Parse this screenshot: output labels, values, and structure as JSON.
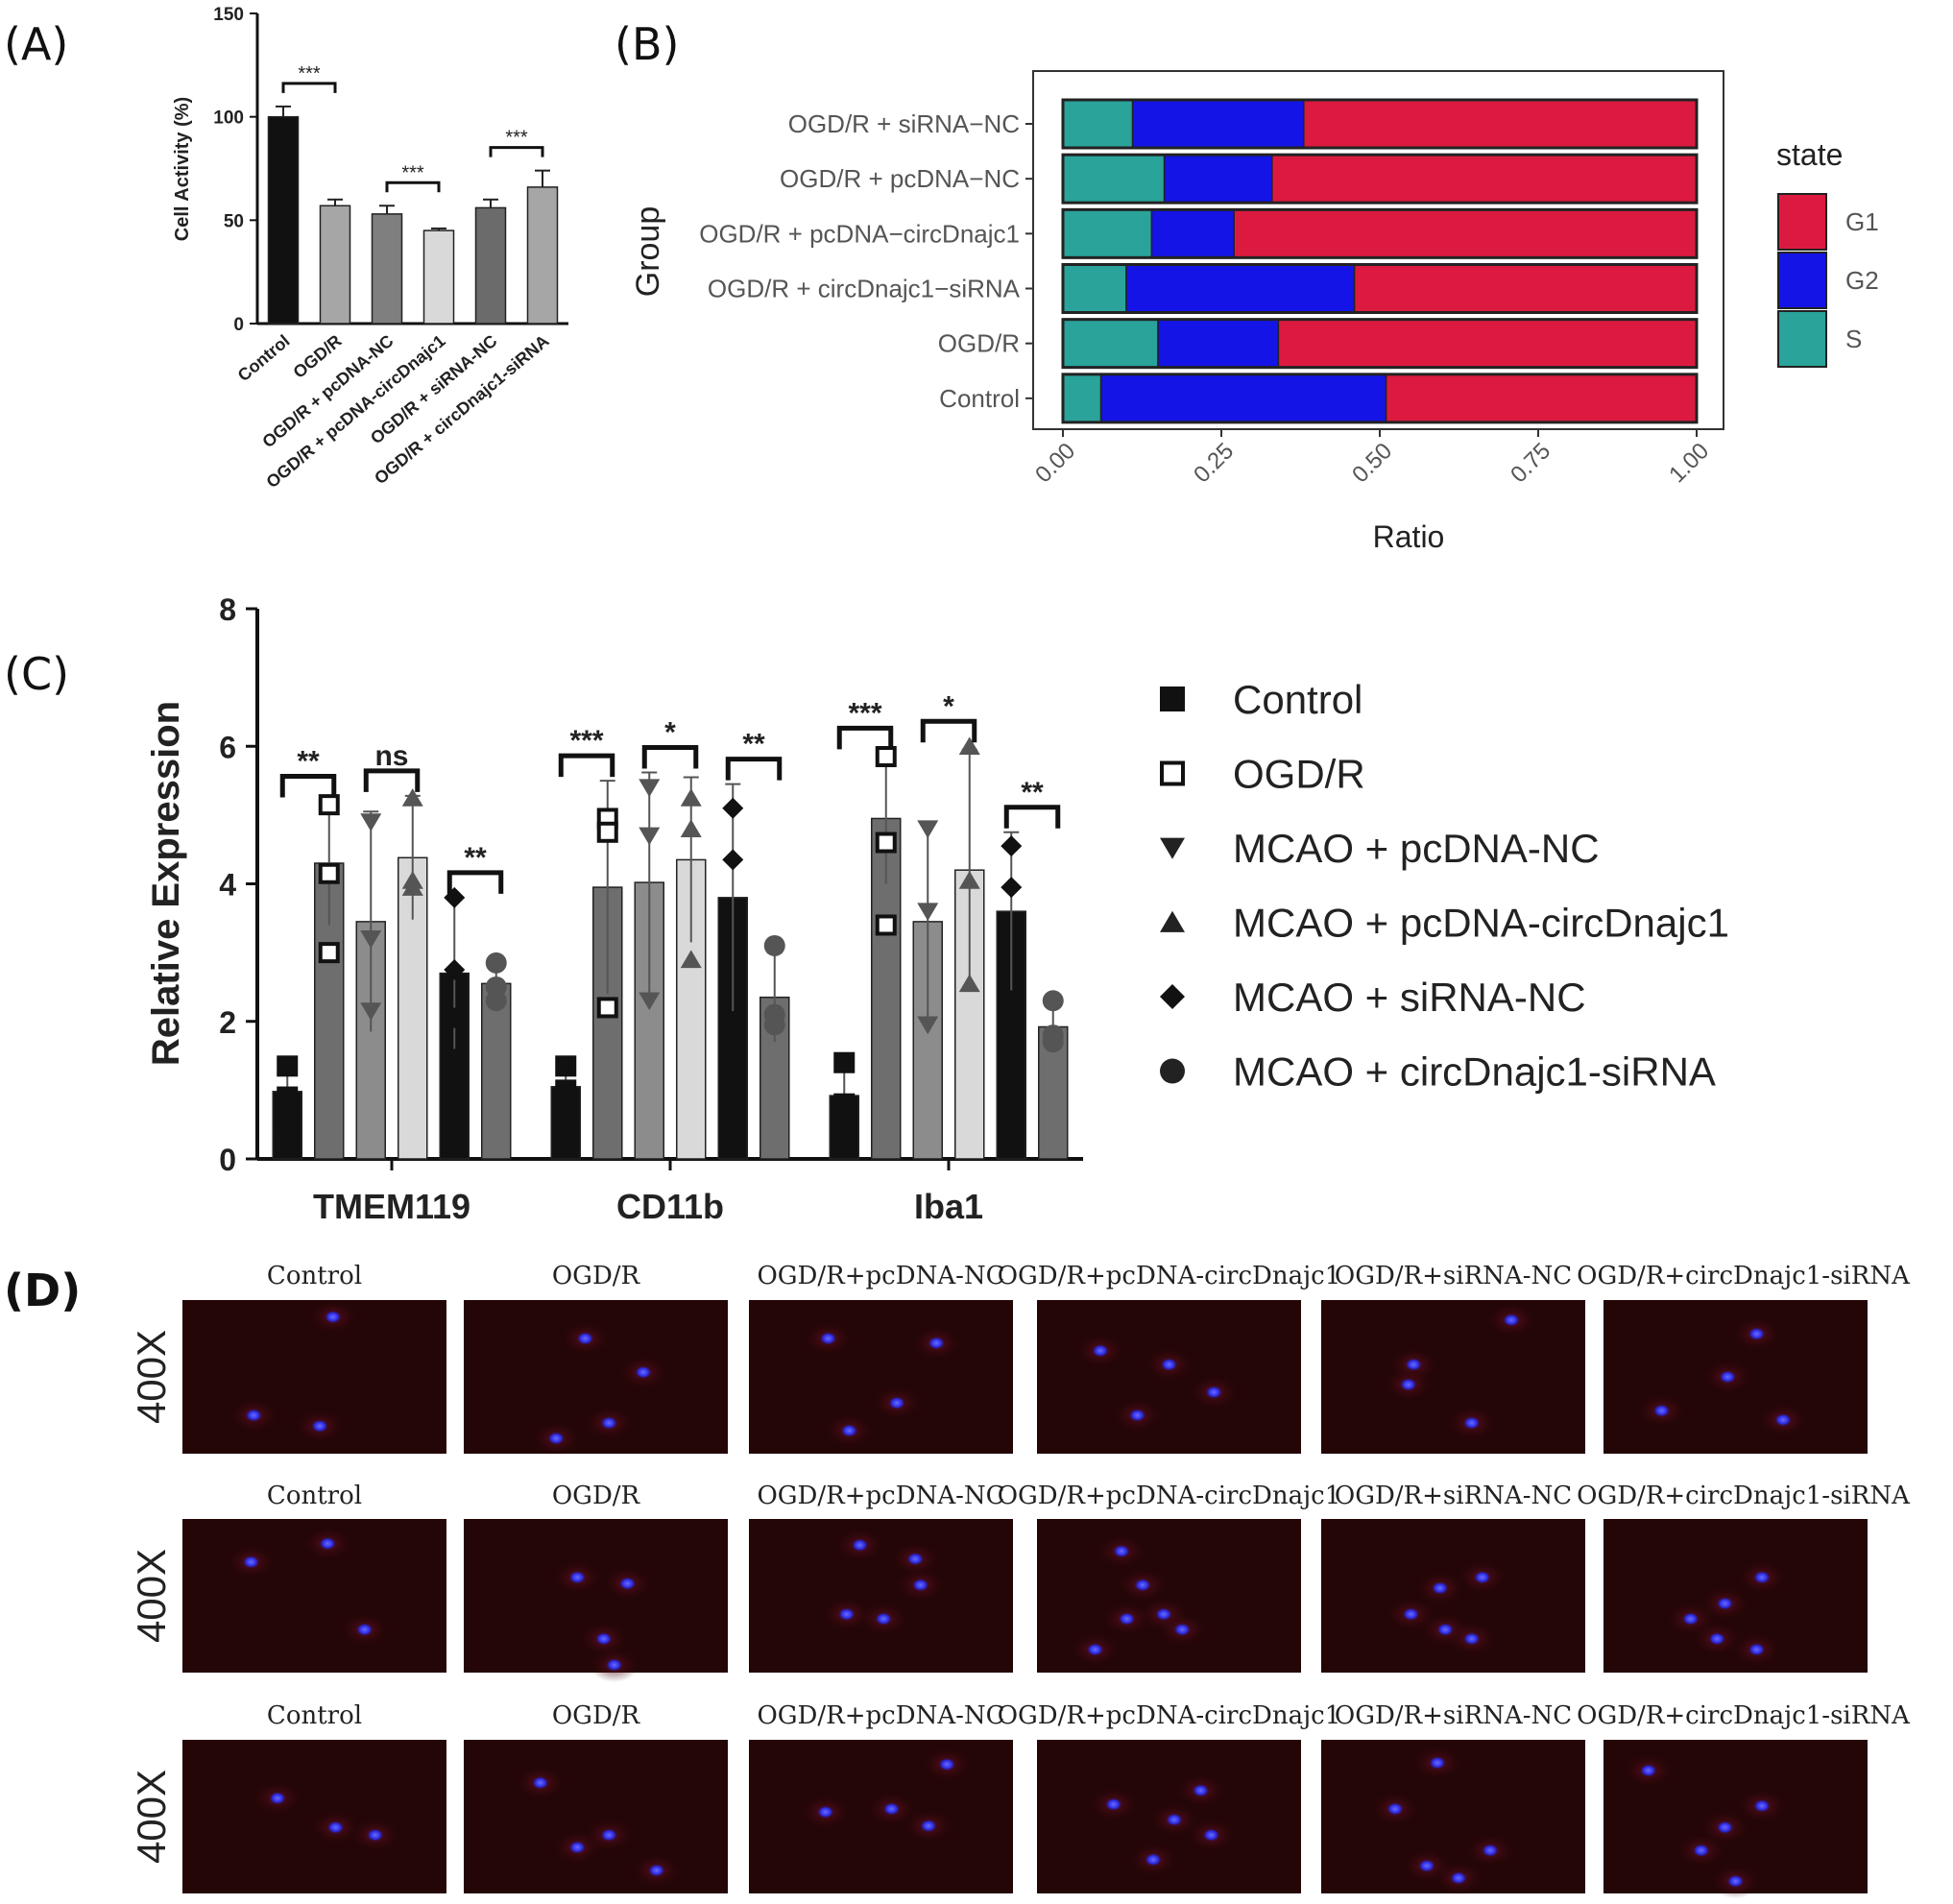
{
  "panel_labels": {
    "a": "(A)",
    "b": "(B)",
    "c": "(C)",
    "d": "(D)"
  },
  "chart_data": [
    {
      "panel": "(A)",
      "type": "bar",
      "ylabel": "Cell Activity (%)",
      "ylim": [
        0,
        150
      ],
      "yticks": [
        0,
        50,
        100,
        150
      ],
      "categories": [
        "Control",
        "OGD/R",
        "OGD/R + pcDNA-NC",
        "OGD/R + pcDNA-circDnajc1",
        "OGD/R + siRNA-NC",
        "OGD/R + circDnajc1-siRNA"
      ],
      "values": [
        100,
        57,
        53,
        45,
        56,
        66
      ],
      "errors": [
        5,
        3,
        4,
        1,
        4,
        8
      ],
      "colors": [
        "#111111",
        "#a6a6a6",
        "#7f7f7f",
        "#d9d9d9",
        "#6b6b6b",
        "#a6a6a6"
      ],
      "significance": [
        {
          "from": 0,
          "to": 1,
          "label": "***"
        },
        {
          "from": 2,
          "to": 3,
          "label": "***"
        },
        {
          "from": 4,
          "to": 5,
          "label": "***"
        }
      ]
    },
    {
      "panel": "(B)",
      "type": "bar",
      "orientation": "horizontal-stacked",
      "xlabel": "Ratio",
      "ylabel": "Group",
      "xlim": [
        0,
        1
      ],
      "xticks": [
        "0.00",
        "0.25",
        "0.50",
        "0.75",
        "1.00"
      ],
      "categories": [
        "OGD/R + siRNA−NC",
        "OGD/R + pcDNA−NC",
        "OGD/R + pcDNA−circDnajc1",
        "OGD/R + circDnajc1−siRNA",
        "OGD/R",
        "Control"
      ],
      "series": [
        {
          "name": "S",
          "color": "#2aa39a",
          "values": [
            0.11,
            0.16,
            0.14,
            0.1,
            0.15,
            0.06
          ]
        },
        {
          "name": "G2",
          "color": "#1414e6",
          "values": [
            0.27,
            0.17,
            0.13,
            0.36,
            0.19,
            0.45
          ]
        },
        {
          "name": "G1",
          "color": "#dc1a40",
          "values": [
            0.62,
            0.67,
            0.73,
            0.54,
            0.66,
            0.49
          ]
        }
      ],
      "legend_title": "state",
      "legend_order": [
        "G1",
        "G2",
        "S"
      ],
      "legend_position": "right"
    },
    {
      "panel": "(C)",
      "type": "bar",
      "ylabel": "Relative Expression",
      "ylim": [
        0,
        8
      ],
      "yticks": [
        0,
        2,
        4,
        6,
        8
      ],
      "categories": [
        "TMEM119",
        "CD11b",
        "Iba1"
      ],
      "series": [
        {
          "name": "Control",
          "marker": "square-filled",
          "color": "#111111",
          "values": [
            0.98,
            1.05,
            0.92
          ],
          "errors": [
            0.4,
            0.35,
            0.45
          ],
          "points": [
            [
              1.35,
              0.9,
              0.6
            ],
            [
              1.35,
              1.0,
              0.75
            ],
            [
              1.4,
              0.8,
              0.6
            ]
          ]
        },
        {
          "name": "OGD/R",
          "marker": "square-open",
          "color": "#6e6e6e",
          "values": [
            4.3,
            3.95,
            4.95
          ],
          "errors": [
            0.9,
            1.55,
            0.95
          ],
          "points": [
            [
              5.15,
              4.15,
              3.0
            ],
            [
              4.95,
              4.75,
              2.2
            ],
            [
              5.85,
              4.6,
              3.4
            ]
          ]
        },
        {
          "name": "MCAO + pcDNA-NC",
          "marker": "triangle-down",
          "color": "#8c8c8c",
          "values": [
            3.45,
            4.02,
            3.45
          ],
          "errors": [
            1.6,
            1.6,
            1.45
          ],
          "points": [
            [
              4.9,
              3.2,
              2.15
            ],
            [
              5.4,
              4.7,
              2.3
            ],
            [
              4.8,
              3.6,
              1.95
            ]
          ]
        },
        {
          "name": "MCAO + pcDNA-circDnajc1",
          "marker": "triangle-up",
          "color": "#d9d9d9",
          "values": [
            4.38,
            4.35,
            4.2
          ],
          "errors": [
            0.9,
            1.2,
            1.75
          ],
          "points": [
            [
              5.25,
              4.05,
              3.95
            ],
            [
              5.25,
              4.8,
              2.9
            ],
            [
              6.0,
              4.05,
              2.55
            ]
          ]
        },
        {
          "name": "MCAO + siRNA-NC",
          "marker": "diamond",
          "color": "#111111",
          "values": [
            2.7,
            3.8,
            3.6
          ],
          "errors": [
            1.1,
            1.65,
            1.15
          ],
          "points": [
            [
              3.8,
              2.75,
              2.05
            ],
            [
              5.1,
              4.35,
              1.95
            ],
            [
              4.55,
              3.95,
              2.3
            ]
          ]
        },
        {
          "name": "MCAO + circDnajc1-siRNA",
          "marker": "circle",
          "color": "#6e6e6e",
          "values": [
            2.55,
            2.35,
            1.92
          ],
          "errors": [
            0.25,
            0.65,
            0.3
          ],
          "points": [
            [
              2.85,
              2.5,
              2.3
            ],
            [
              3.1,
              2.1,
              1.95
            ],
            [
              2.3,
              1.8,
              1.7
            ]
          ]
        }
      ],
      "significance": [
        {
          "category": 0,
          "from": 0,
          "to": 1,
          "label": "**"
        },
        {
          "category": 0,
          "from": 2,
          "to": 3,
          "label": "ns"
        },
        {
          "category": 0,
          "from": 4,
          "to": 5,
          "label": "**"
        },
        {
          "category": 1,
          "from": 0,
          "to": 1,
          "label": "***"
        },
        {
          "category": 1,
          "from": 2,
          "to": 3,
          "label": "*"
        },
        {
          "category": 1,
          "from": 4,
          "to": 5,
          "label": "**"
        },
        {
          "category": 2,
          "from": 0,
          "to": 1,
          "label": "***"
        },
        {
          "category": 2,
          "from": 2,
          "to": 3,
          "label": "*"
        },
        {
          "category": 2,
          "from": 4,
          "to": 5,
          "label": "**"
        }
      ],
      "legend_position": "right"
    }
  ],
  "panel_d": {
    "magnification": "400X",
    "rows": [
      {
        "labels": [
          "Control",
          "OGD/R",
          "OGD/R+pcDNA-NC",
          "OGD/R+pcDNA-circDnajc1",
          "OGD/R+siRNA-NC",
          "OGD/R+circDnajc1-siRNA"
        ],
        "cells": [
          [
            [
              0.57,
              0.11
            ],
            [
              0.27,
              0.75
            ],
            [
              0.52,
              0.82
            ]
          ],
          [
            [
              0.46,
              0.25
            ],
            [
              0.68,
              0.47
            ],
            [
              0.55,
              0.8
            ],
            [
              0.35,
              0.9
            ]
          ],
          [
            [
              0.3,
              0.25
            ],
            [
              0.71,
              0.28
            ],
            [
              0.56,
              0.67
            ],
            [
              0.38,
              0.85
            ]
          ],
          [
            [
              0.24,
              0.33
            ],
            [
              0.5,
              0.42
            ],
            [
              0.67,
              0.6
            ],
            [
              0.38,
              0.75
            ]
          ],
          [
            [
              0.35,
              0.42
            ],
            [
              0.33,
              0.55
            ],
            [
              0.57,
              0.8
            ],
            [
              0.72,
              0.13
            ]
          ],
          [
            [
              0.58,
              0.22
            ],
            [
              0.47,
              0.5
            ],
            [
              0.22,
              0.72
            ],
            [
              0.68,
              0.78
            ]
          ]
        ]
      },
      {
        "labels": [
          "Control",
          "OGD/R",
          "OGD/R+pcDNA-NC",
          "OGD/R+pcDNA-circDnajc1",
          "OGD/R+siRNA-NC",
          "OGD/R+circDnajc1-siRNA"
        ],
        "cells": [
          [
            [
              0.26,
              0.28
            ],
            [
              0.55,
              0.16
            ],
            [
              0.69,
              0.72
            ]
          ],
          [
            [
              0.43,
              0.38
            ],
            [
              0.62,
              0.42
            ],
            [
              0.53,
              0.78
            ],
            [
              0.57,
              0.95
            ]
          ],
          [
            [
              0.42,
              0.17
            ],
            [
              0.65,
              0.43
            ],
            [
              0.37,
              0.62
            ],
            [
              0.51,
              0.65
            ],
            [
              0.63,
              0.26
            ]
          ],
          [
            [
              0.32,
              0.21
            ],
            [
              0.4,
              0.43
            ],
            [
              0.48,
              0.62
            ],
            [
              0.22,
              0.85
            ],
            [
              0.55,
              0.72
            ],
            [
              0.34,
              0.65
            ]
          ],
          [
            [
              0.45,
              0.45
            ],
            [
              0.61,
              0.38
            ],
            [
              0.47,
              0.72
            ],
            [
              0.57,
              0.78
            ],
            [
              0.34,
              0.62
            ]
          ],
          [
            [
              0.6,
              0.38
            ],
            [
              0.46,
              0.55
            ],
            [
              0.33,
              0.65
            ],
            [
              0.43,
              0.78
            ],
            [
              0.58,
              0.85
            ]
          ]
        ]
      },
      {
        "labels": [
          "Control",
          "OGD/R",
          "OGD/R+pcDNA-NC",
          "OGD/R+pcDNA-circDnajc1",
          "OGD/R+siRNA-NC",
          "OGD/R+circDnajc1-siRNA"
        ],
        "cells": [
          [
            [
              0.36,
              0.38
            ],
            [
              0.58,
              0.57
            ],
            [
              0.73,
              0.62
            ]
          ],
          [
            [
              0.29,
              0.28
            ],
            [
              0.43,
              0.7
            ],
            [
              0.55,
              0.62
            ],
            [
              0.73,
              0.85
            ]
          ],
          [
            [
              0.29,
              0.47
            ],
            [
              0.54,
              0.45
            ],
            [
              0.75,
              0.16
            ],
            [
              0.68,
              0.56
            ]
          ],
          [
            [
              0.29,
              0.42
            ],
            [
              0.52,
              0.52
            ],
            [
              0.66,
              0.62
            ],
            [
              0.44,
              0.78
            ],
            [
              0.62,
              0.33
            ]
          ],
          [
            [
              0.44,
              0.15
            ],
            [
              0.28,
              0.45
            ],
            [
              0.64,
              0.72
            ],
            [
              0.4,
              0.82
            ],
            [
              0.52,
              0.9
            ]
          ],
          [
            [
              0.17,
              0.2
            ],
            [
              0.46,
              0.57
            ],
            [
              0.37,
              0.72
            ],
            [
              0.6,
              0.43
            ],
            [
              0.5,
              0.92
            ]
          ]
        ]
      }
    ]
  }
}
